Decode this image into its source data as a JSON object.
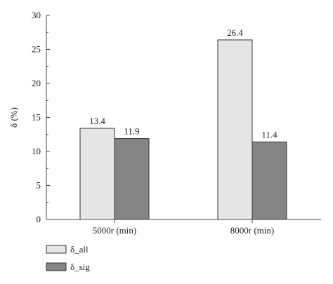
{
  "chart_data": {
    "type": "bar",
    "categories": [
      "5000r (min)",
      "8000r (min)"
    ],
    "series": [
      {
        "name": "δ_all",
        "values": [
          13.4,
          26.4
        ],
        "color": "#e6e6e6"
      },
      {
        "name": "δ_sig",
        "values": [
          11.9,
          11.4
        ],
        "color": "#858585"
      }
    ],
    "data_labels": [
      [
        "13.4",
        "26.4"
      ],
      [
        "11.9",
        "11.4"
      ]
    ],
    "xlabel": "",
    "ylabel": "δ (%)",
    "ylim": [
      0,
      30
    ],
    "yticks": [
      0,
      5,
      10,
      15,
      20,
      25,
      30
    ],
    "grid": false,
    "legend_position": "bottom-left"
  }
}
